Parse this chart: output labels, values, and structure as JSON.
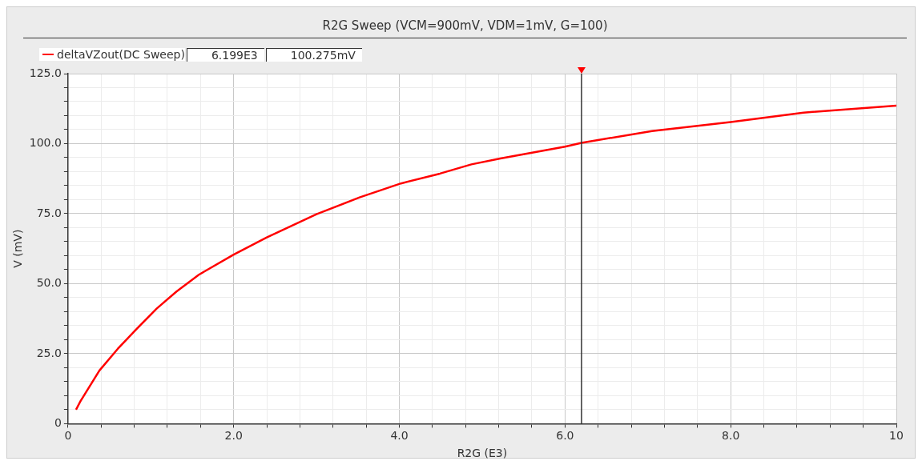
{
  "chart_data": {
    "type": "line",
    "title": "R2G Sweep (VCM=900mV, VDM=1mV, G=100)",
    "xlabel": "R2G (E3)",
    "ylabel": "V (mV)",
    "annotations": [
      "6.199E3",
      "100.275mV"
    ],
    "series": [
      {
        "name": "deltaVZout(DC Sweep)",
        "color": "#ff0000",
        "x": [
          0.097,
          0.15,
          0.38,
          0.6,
          0.83,
          1.07,
          1.31,
          1.58,
          2.0,
          2.4,
          3.0,
          3.52,
          4.02,
          4.49,
          4.87,
          5.22,
          6.0,
          6.199,
          7.05,
          8.0,
          8.88,
          10.0
        ],
        "values": [
          5.0,
          8.0,
          19.0,
          26.7,
          33.9,
          41.1,
          47.2,
          53.2,
          60.4,
          66.5,
          74.8,
          80.8,
          85.8,
          89.3,
          92.6,
          94.7,
          98.9,
          100.3,
          104.5,
          107.7,
          111.1,
          113.6
        ]
      }
    ],
    "xlim": [
      0,
      10
    ],
    "ylim": [
      0,
      125
    ],
    "xticks": [
      0,
      {
        "value": 0.4,
        "label": null
      },
      {
        "value": 0.8,
        "label": null
      },
      {
        "value": 1.2,
        "label": null
      },
      {
        "value": 1.6,
        "label": null
      },
      {
        "value": 2,
        "label": "2.0"
      },
      {
        "value": 2.4,
        "label": null
      },
      {
        "value": 2.8,
        "label": null
      },
      {
        "value": 3.2,
        "label": null
      },
      {
        "value": 3.6,
        "label": null
      },
      {
        "value": 4,
        "label": "4.0"
      },
      {
        "value": 4.4,
        "label": null
      },
      {
        "value": 4.8,
        "label": null
      },
      {
        "value": 5.2,
        "label": null
      },
      {
        "value": 5.6,
        "label": null
      },
      {
        "value": 6,
        "label": "6.0"
      },
      {
        "value": 6.4,
        "label": null
      },
      {
        "value": 6.8,
        "label": null
      },
      {
        "value": 7.2,
        "label": null
      },
      {
        "value": 7.6,
        "label": null
      },
      {
        "value": 8,
        "label": "8.0"
      },
      {
        "value": 8.4,
        "label": null
      },
      {
        "value": 8.8,
        "label": null
      },
      {
        "value": 9.2,
        "label": null
      },
      {
        "value": 9.6,
        "label": null
      },
      10
    ],
    "yticks": [
      0,
      {
        "value": 5,
        "label": null
      },
      {
        "value": 10,
        "label": null
      },
      {
        "value": 15,
        "label": null
      },
      {
        "value": 20,
        "label": null
      },
      {
        "value": 25,
        "label": "25.0"
      },
      {
        "value": 30,
        "label": null
      },
      {
        "value": 35,
        "label": null
      },
      {
        "value": 40,
        "label": null
      },
      {
        "value": 45,
        "label": null
      },
      {
        "value": 50,
        "label": "50.0"
      },
      {
        "value": 55,
        "label": null
      },
      {
        "value": 60,
        "label": null
      },
      {
        "value": 65,
        "label": null
      },
      {
        "value": 70,
        "label": null
      },
      {
        "value": 75,
        "label": "75.0"
      },
      {
        "value": 80,
        "label": null
      },
      {
        "value": 85,
        "label": null
      },
      {
        "value": 90,
        "label": null
      },
      {
        "value": 95,
        "label": null
      },
      {
        "value": 100,
        "label": "100.0"
      },
      {
        "value": 105,
        "label": null
      },
      {
        "value": 110,
        "label": null
      },
      {
        "value": 115,
        "label": null
      },
      {
        "value": 120,
        "label": null
      },
      {
        "value": 125,
        "label": "125.0"
      }
    ],
    "ref_lines": [
      {
        "axis": "x",
        "value": 6.199,
        "color": "#333333"
      }
    ],
    "grid": true,
    "legend": "top left",
    "marker": "none",
    "line_style": "solid"
  }
}
